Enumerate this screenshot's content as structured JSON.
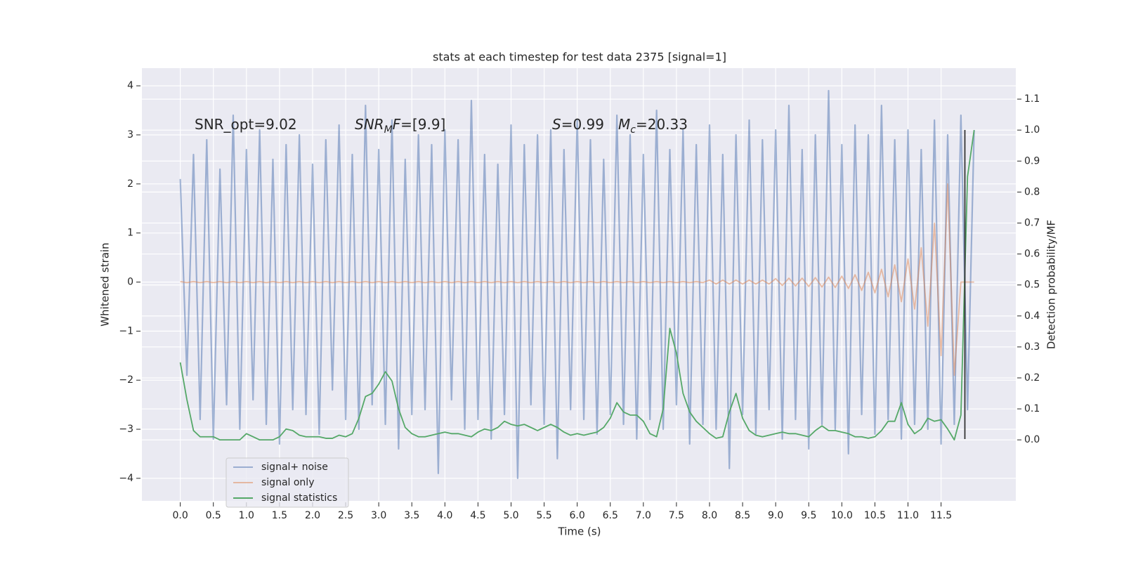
{
  "chart_data": {
    "type": "line",
    "title": "stats at each timestep for test data 2375 [signal=1]",
    "xlabel": "Time (s)",
    "ylabel": "Whitened strain",
    "y2label": "Detection probability/MF",
    "grid": true,
    "background": "#eaeaf2",
    "legend": "lower left",
    "xlim": [
      -0.58,
      12.63
    ],
    "ylim": [
      -4.46,
      4.36
    ],
    "y2lim": [
      -0.197,
      1.2
    ],
    "xticks": [
      {
        "value": 0,
        "label": "0.0"
      },
      0.5,
      {
        "value": 1,
        "label": "1.0"
      },
      1.5,
      {
        "value": 2,
        "label": "2.0"
      },
      2.5,
      {
        "value": 3,
        "label": "3.0"
      },
      3.5,
      {
        "value": 4,
        "label": "4.0"
      },
      4.5,
      {
        "value": 5,
        "label": "5.0"
      },
      5.5,
      {
        "value": 6,
        "label": "6.0"
      },
      6.5,
      {
        "value": 7,
        "label": "7.0"
      },
      7.5,
      {
        "value": 8,
        "label": "8.0"
      },
      8.5,
      {
        "value": 9,
        "label": "9.0"
      },
      9.5,
      {
        "value": 10,
        "label": "10.0"
      },
      10.5,
      {
        "value": 11,
        "label": "11.0"
      },
      11.5
    ],
    "yticks": [
      {
        "value": -4,
        "label": "−4"
      },
      {
        "value": -3,
        "label": "−3"
      },
      {
        "value": -2,
        "label": "−2"
      },
      {
        "value": -1,
        "label": "−1"
      },
      0,
      1,
      2,
      3,
      4
    ],
    "y2ticks": [
      {
        "value": 0,
        "label": "0.0"
      },
      0.1,
      0.2,
      0.3,
      0.4,
      0.5,
      0.6,
      0.7,
      0.8,
      0.9,
      {
        "value": 1,
        "label": "1.0"
      },
      1.1
    ],
    "x": [
      0.0,
      0.1,
      0.2,
      0.3,
      0.4,
      0.5,
      0.6,
      0.7,
      0.8,
      0.9,
      1.0,
      1.1,
      1.2,
      1.3,
      1.4,
      1.5,
      1.6,
      1.7,
      1.8,
      1.9,
      2.0,
      2.1,
      2.2,
      2.3,
      2.4,
      2.5,
      2.6,
      2.7,
      2.8,
      2.9,
      3.0,
      3.1,
      3.2,
      3.3,
      3.4,
      3.5,
      3.6,
      3.7,
      3.8,
      3.9,
      4.0,
      4.1,
      4.2,
      4.3,
      4.4,
      4.5,
      4.6,
      4.7,
      4.8,
      4.9,
      5.0,
      5.1,
      5.2,
      5.3,
      5.4,
      5.5,
      5.6,
      5.7,
      5.8,
      5.9,
      6.0,
      6.1,
      6.2,
      6.3,
      6.4,
      6.5,
      6.6,
      6.7,
      6.8,
      6.9,
      7.0,
      7.1,
      7.2,
      7.3,
      7.4,
      7.5,
      7.6,
      7.7,
      7.8,
      7.9,
      8.0,
      8.1,
      8.2,
      8.3,
      8.4,
      8.5,
      8.6,
      8.7,
      8.8,
      8.9,
      9.0,
      9.1,
      9.2,
      9.3,
      9.4,
      9.5,
      9.6,
      9.7,
      9.8,
      9.9,
      10.0,
      10.1,
      10.2,
      10.3,
      10.4,
      10.5,
      10.6,
      10.7,
      10.8,
      10.9,
      11.0,
      11.1,
      11.2,
      11.3,
      11.4,
      11.5,
      11.6,
      11.7,
      11.8,
      11.9,
      12.0
    ],
    "series": [
      {
        "name": "signal+ noise",
        "color": "#4c72b0",
        "alpha": 0.5,
        "axis": "y",
        "values": [
          2.1,
          -1.9,
          2.6,
          -2.8,
          2.9,
          -3.2,
          2.3,
          -2.5,
          3.4,
          -3.0,
          2.7,
          -2.4,
          3.1,
          -2.9,
          2.5,
          -3.3,
          2.8,
          -2.6,
          3.0,
          -2.7,
          2.4,
          -3.1,
          2.9,
          -2.2,
          3.2,
          -2.8,
          2.6,
          -3.0,
          3.6,
          -2.5,
          2.7,
          -2.9,
          3.3,
          -3.4,
          2.5,
          -2.7,
          3.0,
          -2.6,
          2.8,
          -3.9,
          3.1,
          -2.4,
          2.9,
          -3.0,
          3.7,
          -2.8,
          2.6,
          -3.2,
          2.4,
          -2.7,
          3.2,
          -4.0,
          2.8,
          -2.5,
          3.0,
          -2.9,
          3.1,
          -3.6,
          2.7,
          -2.6,
          3.3,
          -2.8,
          2.9,
          -3.1,
          2.5,
          -2.7,
          3.4,
          -2.9,
          3.0,
          -3.2,
          2.6,
          -2.8,
          3.5,
          -3.0,
          2.7,
          -2.5,
          3.1,
          -3.3,
          2.8,
          -2.9,
          3.2,
          -3.0,
          2.6,
          -3.8,
          3.0,
          -2.7,
          3.3,
          -3.1,
          2.9,
          -2.6,
          3.1,
          -3.2,
          3.6,
          -2.8,
          2.7,
          -3.4,
          3.0,
          -2.9,
          3.9,
          -3.0,
          2.8,
          -3.5,
          3.2,
          -2.7,
          3.0,
          -3.1,
          3.6,
          -2.8,
          2.9,
          -3.2,
          3.1,
          -2.9,
          2.7,
          -3.0,
          3.3,
          -3.3,
          3.0,
          -2.9,
          3.4,
          -2.6,
          3.1
        ]
      },
      {
        "name": "signal only",
        "color": "#dd8452",
        "alpha": 0.5,
        "axis": "y",
        "values": [
          0.01,
          -0.01,
          0.01,
          -0.01,
          0.01,
          -0.01,
          0.01,
          -0.01,
          0.01,
          -0.01,
          0.01,
          -0.01,
          0.01,
          -0.01,
          0.01,
          -0.01,
          0.01,
          -0.01,
          0.01,
          -0.01,
          0.01,
          -0.01,
          0.01,
          -0.01,
          0.01,
          -0.01,
          0.01,
          -0.01,
          0.01,
          -0.01,
          0.01,
          -0.01,
          0.01,
          -0.01,
          0.01,
          -0.01,
          0.01,
          -0.01,
          0.01,
          -0.01,
          0.01,
          -0.01,
          0.01,
          -0.01,
          0.01,
          -0.01,
          0.01,
          -0.01,
          0.01,
          -0.01,
          0.01,
          -0.01,
          0.01,
          -0.01,
          0.01,
          -0.01,
          0.01,
          -0.01,
          0.01,
          -0.01,
          0.01,
          -0.01,
          0.01,
          -0.01,
          0.01,
          -0.01,
          0.01,
          -0.01,
          0.01,
          -0.01,
          0.01,
          -0.01,
          0.01,
          -0.01,
          0.01,
          -0.01,
          0.01,
          -0.01,
          0.01,
          -0.01,
          0.04,
          -0.04,
          0.04,
          -0.04,
          0.04,
          -0.04,
          0.04,
          -0.04,
          0.04,
          -0.04,
          0.07,
          -0.07,
          0.08,
          -0.08,
          0.08,
          -0.09,
          0.09,
          -0.1,
          0.1,
          -0.11,
          0.12,
          -0.13,
          0.15,
          -0.17,
          0.2,
          -0.22,
          0.26,
          -0.3,
          0.35,
          -0.4,
          0.47,
          -0.55,
          0.7,
          -0.9,
          1.2,
          -1.5,
          2.0,
          -1.9,
          0,
          0,
          0
        ]
      },
      {
        "name": "signal statistics",
        "color": "#55a868",
        "alpha": 1,
        "axis": "y2",
        "values": [
          0.25,
          0.13,
          0.03,
          0.01,
          0.01,
          0.01,
          0.0,
          0.0,
          0.0,
          0.0,
          0.02,
          0.01,
          0.0,
          0.0,
          0.0,
          0.01,
          0.035,
          0.03,
          0.015,
          0.01,
          0.01,
          0.01,
          0.005,
          0.005,
          0.015,
          0.01,
          0.02,
          0.07,
          0.14,
          0.15,
          0.18,
          0.22,
          0.19,
          0.1,
          0.04,
          0.02,
          0.01,
          0.01,
          0.015,
          0.02,
          0.025,
          0.02,
          0.02,
          0.015,
          0.01,
          0.025,
          0.035,
          0.03,
          0.04,
          0.06,
          0.05,
          0.045,
          0.05,
          0.04,
          0.03,
          0.04,
          0.05,
          0.04,
          0.025,
          0.015,
          0.02,
          0.015,
          0.02,
          0.025,
          0.04,
          0.07,
          0.12,
          0.09,
          0.08,
          0.08,
          0.06,
          0.02,
          0.01,
          0.1,
          0.36,
          0.28,
          0.15,
          0.09,
          0.06,
          0.04,
          0.02,
          0.005,
          0.01,
          0.09,
          0.15,
          0.07,
          0.03,
          0.015,
          0.01,
          0.015,
          0.02,
          0.025,
          0.02,
          0.02,
          0.015,
          0.01,
          0.03,
          0.045,
          0.03,
          0.03,
          0.025,
          0.02,
          0.01,
          0.01,
          0.005,
          0.01,
          0.03,
          0.06,
          0.06,
          0.12,
          0.05,
          0.02,
          0.035,
          0.07,
          0.06,
          0.065,
          0.035,
          0.0,
          0.08,
          0.85,
          1.0
        ]
      }
    ],
    "vlines": [
      {
        "x": 11.86,
        "y": [
          -3.2,
          3.1
        ],
        "color": "#333333"
      }
    ],
    "annotations": [
      {
        "parts": [
          {
            "text": "SNR_opt=9.02"
          }
        ]
      },
      {
        "parts": [
          {
            "text": "SNR",
            "style": "italic"
          },
          {
            "text": "M",
            "style": "italic",
            "sub": true
          },
          {
            "text": "F",
            "style": "italic"
          },
          {
            "text": "=[9.9]"
          }
        ]
      },
      {
        "parts": [
          {
            "text": "S",
            "style": "italic"
          },
          {
            "text": "=0.99"
          }
        ]
      },
      {
        "parts": [
          {
            "text": "M",
            "style": "italic"
          },
          {
            "text": "c",
            "style": "italic",
            "sub": true
          },
          {
            "text": "=20.33"
          }
        ]
      }
    ]
  }
}
